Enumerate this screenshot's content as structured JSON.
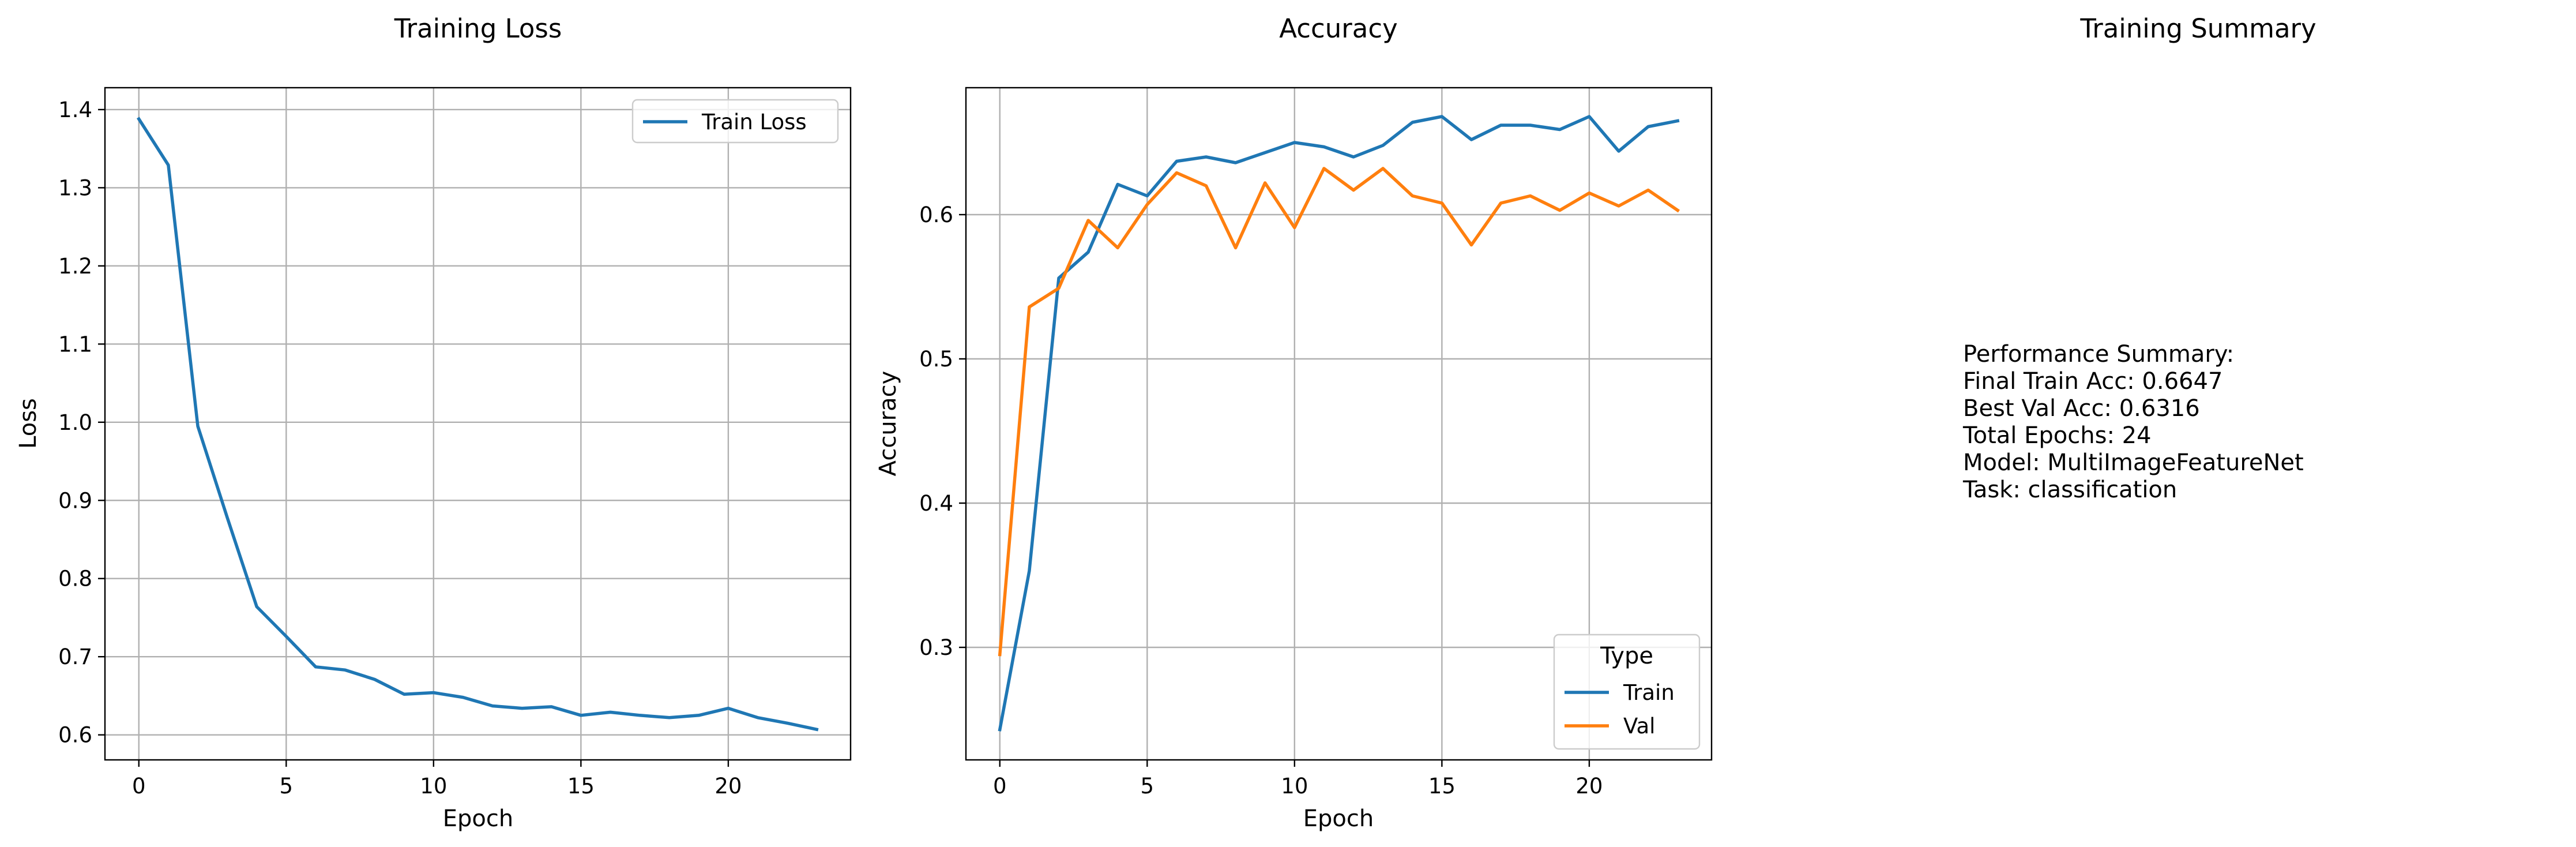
{
  "chart_data": [
    {
      "type": "line",
      "title": "Training Loss",
      "xlabel": "Epoch",
      "ylabel": "Loss",
      "xlim": [
        -1.15,
        24.15
      ],
      "ylim": [
        0.568,
        1.428
      ],
      "xticks": [
        0,
        5,
        10,
        15,
        20
      ],
      "yticks": [
        0.6,
        0.7,
        0.8,
        0.9,
        1.0,
        1.1,
        1.2,
        1.3,
        1.4
      ],
      "ytick_labels": [
        "0.6",
        "0.7",
        "0.8",
        "0.9",
        "1.0",
        "1.1",
        "1.2",
        "1.3",
        "1.4"
      ],
      "grid": true,
      "legend": {
        "position": "upper-right",
        "title": ""
      },
      "x": [
        0,
        1,
        2,
        3,
        4,
        5,
        6,
        7,
        8,
        9,
        10,
        11,
        12,
        13,
        14,
        15,
        16,
        17,
        18,
        19,
        20,
        21,
        22,
        23
      ],
      "series": [
        {
          "name": "Train Loss",
          "color": "#1f77b4",
          "values": [
            1.388,
            1.329,
            0.995,
            0.878,
            0.764,
            0.726,
            0.687,
            0.683,
            0.671,
            0.652,
            0.654,
            0.648,
            0.637,
            0.634,
            0.636,
            0.625,
            0.629,
            0.625,
            0.622,
            0.625,
            0.634,
            0.622,
            0.615,
            0.607
          ]
        }
      ]
    },
    {
      "type": "line",
      "title": "Accuracy",
      "xlabel": "Epoch",
      "ylabel": "Accuracy",
      "xlim": [
        -1.15,
        24.15
      ],
      "ylim": [
        0.222,
        0.688
      ],
      "xticks": [
        0,
        5,
        10,
        15,
        20
      ],
      "yticks": [
        0.3,
        0.4,
        0.5,
        0.6
      ],
      "ytick_labels": [
        "0.3",
        "0.4",
        "0.5",
        "0.6"
      ],
      "grid": true,
      "legend": {
        "position": "lower-right",
        "title": "Type"
      },
      "x": [
        0,
        1,
        2,
        3,
        4,
        5,
        6,
        7,
        8,
        9,
        10,
        11,
        12,
        13,
        14,
        15,
        16,
        17,
        18,
        19,
        20,
        21,
        22,
        23
      ],
      "series": [
        {
          "name": "Train",
          "color": "#1f77b4",
          "values": [
            0.243,
            0.353,
            0.556,
            0.574,
            0.621,
            0.613,
            0.637,
            0.64,
            0.636,
            0.643,
            0.65,
            0.647,
            0.64,
            0.648,
            0.664,
            0.668,
            0.652,
            0.662,
            0.662,
            0.659,
            0.668,
            0.644,
            0.661,
            0.665
          ]
        },
        {
          "name": "Val",
          "color": "#ff7f0e",
          "values": [
            0.295,
            0.536,
            0.549,
            0.596,
            0.577,
            0.607,
            0.629,
            0.62,
            0.577,
            0.622,
            0.591,
            0.632,
            0.617,
            0.632,
            0.613,
            0.608,
            0.579,
            0.608,
            0.613,
            0.603,
            0.615,
            0.606,
            0.617,
            0.603
          ]
        }
      ]
    }
  ],
  "summary": {
    "title": "Training Summary",
    "lines": [
      "Performance Summary:",
      "Final Train Acc: 0.6647",
      "Best Val Acc: 0.6316",
      "Total Epochs: 24",
      "Model: MultiImageFeatureNet",
      "Task: classification"
    ]
  }
}
